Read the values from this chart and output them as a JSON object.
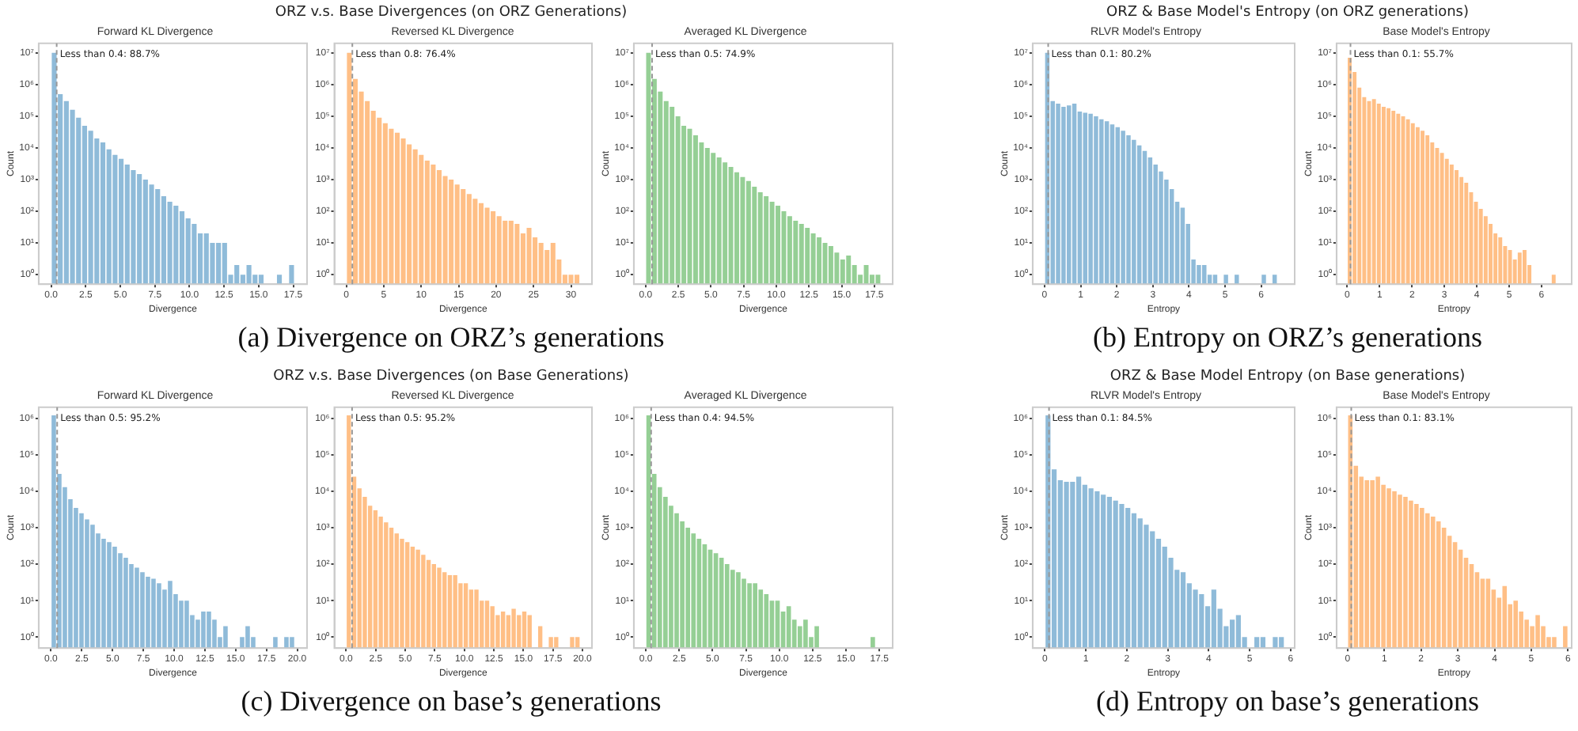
{
  "chart_data": [
    {
      "type": "histogram",
      "title": "Forward KL Divergence",
      "xlabel": "Divergence",
      "ylabel": "Count",
      "color": "#8fbbd9",
      "log": "y",
      "annotations": [
        "ORZ v.s. Base Divergences (on ORZ Generations)",
        "(a) Divergence on ORZ’s generations"
      ],
      "bins": [
        0,
        0.44,
        0.88,
        1.32,
        1.76,
        2.2,
        2.64,
        3.08,
        3.52,
        3.96,
        4.4,
        4.84,
        5.28,
        5.72,
        6.16,
        6.6,
        7.04,
        7.48,
        7.92,
        8.36,
        8.8,
        9.24,
        9.68,
        10.12,
        10.56,
        11,
        11.44,
        11.88,
        12.32,
        12.76,
        13.2,
        13.64,
        14.08,
        14.52,
        14.96,
        15.4,
        15.84,
        16.28,
        16.72,
        17.16,
        17.6
      ],
      "values": [
        10000000,
        500000,
        300000,
        160000,
        90000,
        50000,
        35000,
        20000,
        15000,
        9000,
        6000,
        4500,
        3000,
        2000,
        1500,
        1000,
        700,
        500,
        300,
        200,
        150,
        100,
        60,
        40,
        20,
        20,
        10,
        10,
        10,
        1,
        2,
        1,
        2,
        1,
        1,
        null,
        null,
        1,
        null,
        2
      ],
      "xlim": [
        -0.9,
        18.5
      ],
      "xticks": [
        {
          "value": 0,
          "label": "0.0"
        },
        2.5,
        {
          "value": 5,
          "label": "5.0"
        },
        7.5,
        {
          "value": 10,
          "label": "10.0"
        },
        12.5,
        {
          "value": 15,
          "label": "15.0"
        },
        17.5
      ],
      "ylim": [
        0.5,
        20000000
      ],
      "yticks": [
        {
          "value": 1,
          "label": "10⁰"
        },
        {
          "value": 10,
          "label": "10¹"
        },
        {
          "value": 100,
          "label": "10²"
        },
        {
          "value": 1000,
          "label": "10³"
        },
        {
          "value": 10000,
          "label": "10⁴"
        },
        {
          "value": 100000,
          "label": "10⁵"
        },
        {
          "value": 1000000,
          "label": "10⁶"
        },
        {
          "value": 10000000,
          "label": "10⁷"
        }
      ],
      "ref_lines": [
        {
          "axis": "x",
          "value": 0.4,
          "label": "Less than 0.4: 88.7%",
          "color": "#999999",
          "line_style": "dashed"
        }
      ]
    },
    {
      "type": "histogram",
      "title": "Reversed KL Divergence",
      "xlabel": "Divergence",
      "color": "#ffbf86",
      "log": "y",
      "bins": [
        0,
        0.8,
        1.6,
        2.4,
        3.2,
        4,
        4.8,
        5.6,
        6.4,
        7.2,
        8,
        8.8,
        9.6,
        10.4,
        11.2,
        12,
        12.8,
        13.6,
        14.4,
        15.2,
        16,
        16.8,
        17.6,
        18.4,
        19.2,
        20,
        20.8,
        21.6,
        22.4,
        23.2,
        24,
        24.8,
        25.6,
        26.4,
        27.2,
        28,
        28.8,
        29.6,
        30.4,
        31.2
      ],
      "values": [
        10000000,
        1500000,
        600000,
        300000,
        150000,
        90000,
        60000,
        40000,
        30000,
        20000,
        13000,
        9000,
        6000,
        4000,
        3000,
        2000,
        1300,
        1000,
        700,
        500,
        350,
        250,
        180,
        130,
        100,
        70,
        50,
        50,
        40,
        20,
        30,
        15,
        10,
        6,
        10,
        3,
        1,
        1,
        1
      ],
      "xlim": [
        -1.6,
        32.8
      ],
      "xticks": [
        0,
        5,
        10,
        15,
        20,
        25,
        30
      ],
      "ylim": [
        0.5,
        20000000
      ],
      "yticks": [
        {
          "value": 1,
          "label": "10⁰"
        },
        {
          "value": 10,
          "label": "10¹"
        },
        {
          "value": 100,
          "label": "10²"
        },
        {
          "value": 1000,
          "label": "10³"
        },
        {
          "value": 10000,
          "label": "10⁴"
        },
        {
          "value": 100000,
          "label": "10⁵"
        },
        {
          "value": 1000000,
          "label": "10⁶"
        },
        {
          "value": 10000000,
          "label": "10⁷"
        }
      ],
      "ref_lines": [
        {
          "axis": "x",
          "value": 0.8,
          "label": "Less than 0.8: 76.4%",
          "color": "#999999",
          "line_style": "dashed"
        }
      ]
    },
    {
      "type": "histogram",
      "title": "Averaged KL Divergence",
      "xlabel": "Divergence",
      "ylabel": "Count",
      "color": "#95cf95",
      "log": "y",
      "bins": [
        0,
        0.45,
        0.9,
        1.35,
        1.8,
        2.25,
        2.7,
        3.15,
        3.6,
        4.05,
        4.5,
        4.95,
        5.4,
        5.85,
        6.3,
        6.75,
        7.2,
        7.65,
        8.1,
        8.55,
        9,
        9.45,
        9.9,
        10.35,
        10.8,
        11.25,
        11.7,
        12.15,
        12.6,
        13.05,
        13.5,
        13.95,
        14.4,
        14.85,
        15.3,
        15.75,
        16.2,
        16.65,
        17.1,
        17.55,
        18
      ],
      "values": [
        10000000,
        1500000,
        600000,
        300000,
        200000,
        100000,
        50000,
        40000,
        25000,
        15000,
        10000,
        7000,
        5000,
        3500,
        2500,
        1700,
        1200,
        900,
        600,
        400,
        300,
        200,
        150,
        100,
        70,
        50,
        40,
        30,
        20,
        15,
        10,
        8,
        5,
        3,
        4,
        2,
        1,
        2,
        1,
        1
      ],
      "xlim": [
        -0.9,
        18.9
      ],
      "xticks": [
        {
          "value": 0,
          "label": "0.0"
        },
        2.5,
        {
          "value": 5,
          "label": "5.0"
        },
        7.5,
        {
          "value": 10,
          "label": "10.0"
        },
        12.5,
        {
          "value": 15,
          "label": "15.0"
        },
        17.5
      ],
      "ylim": [
        0.5,
        20000000
      ],
      "yticks": [
        {
          "value": 1,
          "label": "10⁰"
        },
        {
          "value": 10,
          "label": "10¹"
        },
        {
          "value": 100,
          "label": "10²"
        },
        {
          "value": 1000,
          "label": "10³"
        },
        {
          "value": 10000,
          "label": "10⁴"
        },
        {
          "value": 100000,
          "label": "10⁵"
        },
        {
          "value": 1000000,
          "label": "10⁶"
        },
        {
          "value": 10000000,
          "label": "10⁷"
        }
      ],
      "ref_lines": [
        {
          "axis": "x",
          "value": 0.5,
          "label": "Less than 0.5: 74.9%",
          "color": "#999999",
          "line_style": "dashed"
        }
      ]
    },
    {
      "type": "histogram",
      "title": "RLVR Model's Entropy",
      "xlabel": "Entropy",
      "ylabel": "Count",
      "color": "#8fbbd9",
      "log": "y",
      "annotations": [
        "ORZ & Base Model's Entropy (on ORZ generations)",
        "(b) Entropy on ORZ’s generations"
      ],
      "bins": [
        0,
        0.15,
        0.3,
        0.45,
        0.6,
        0.75,
        0.9,
        1.05,
        1.2,
        1.35,
        1.5,
        1.65,
        1.8,
        1.95,
        2.1,
        2.25,
        2.4,
        2.55,
        2.7,
        2.85,
        3,
        3.15,
        3.3,
        3.45,
        3.6,
        3.75,
        3.9,
        4.05,
        4.2,
        4.35,
        4.5,
        4.65,
        4.8,
        4.95,
        5.1,
        5.25,
        5.4,
        5.55,
        5.7,
        5.85,
        6,
        6.15,
        6.3,
        6.45,
        6.6
      ],
      "values": [
        10000000,
        300000,
        250000,
        200000,
        220000,
        250000,
        140000,
        130000,
        120000,
        100000,
        80000,
        70000,
        55000,
        45000,
        35000,
        25000,
        18000,
        12000,
        8000,
        5000,
        3000,
        1800,
        1000,
        500,
        200,
        130,
        40,
        3,
        2,
        2,
        1,
        1,
        null,
        1,
        null,
        1,
        null,
        null,
        null,
        null,
        1,
        null,
        1,
        null
      ],
      "xlim": [
        -0.33,
        6.93
      ],
      "xticks": [
        0,
        1,
        2,
        3,
        4,
        5,
        6
      ],
      "ylim": [
        0.5,
        20000000
      ],
      "yticks": [
        {
          "value": 1,
          "label": "10⁰"
        },
        {
          "value": 10,
          "label": "10¹"
        },
        {
          "value": 100,
          "label": "10²"
        },
        {
          "value": 1000,
          "label": "10³"
        },
        {
          "value": 10000,
          "label": "10⁴"
        },
        {
          "value": 100000,
          "label": "10⁵"
        },
        {
          "value": 1000000,
          "label": "10⁶"
        },
        {
          "value": 10000000,
          "label": "10⁷"
        }
      ],
      "ref_lines": [
        {
          "axis": "x",
          "value": 0.1,
          "label": "Less than 0.1: 80.2%",
          "color": "#999999",
          "line_style": "dashed"
        }
      ]
    },
    {
      "type": "histogram",
      "title": "Base Model's Entropy",
      "xlabel": "Entropy",
      "ylabel": "Count",
      "color": "#ffbf86",
      "log": "y",
      "bins": [
        0,
        0.15,
        0.3,
        0.45,
        0.6,
        0.75,
        0.9,
        1.05,
        1.2,
        1.35,
        1.5,
        1.65,
        1.8,
        1.95,
        2.1,
        2.25,
        2.4,
        2.55,
        2.7,
        2.85,
        3,
        3.15,
        3.3,
        3.45,
        3.6,
        3.75,
        3.9,
        4.05,
        4.2,
        4.35,
        4.5,
        4.65,
        4.8,
        4.95,
        5.1,
        5.25,
        5.4,
        5.55,
        5.7,
        5.85,
        6,
        6.15,
        6.3,
        6.45,
        6.6
      ],
      "values": [
        7000000,
        2500000,
        800000,
        400000,
        300000,
        350000,
        250000,
        200000,
        180000,
        150000,
        120000,
        100000,
        80000,
        60000,
        45000,
        35000,
        25000,
        15000,
        10000,
        7000,
        4500,
        3000,
        2000,
        1200,
        800,
        400,
        200,
        120,
        70,
        40,
        20,
        15,
        8,
        6,
        3,
        5,
        6,
        2,
        null,
        null,
        null,
        null,
        1,
        null
      ],
      "xlim": [
        -0.33,
        6.93
      ],
      "xticks": [
        0,
        1,
        2,
        3,
        4,
        5,
        6
      ],
      "ylim": [
        0.5,
        20000000
      ],
      "yticks": [
        {
          "value": 1,
          "label": "10⁰"
        },
        {
          "value": 10,
          "label": "10¹"
        },
        {
          "value": 100,
          "label": "10²"
        },
        {
          "value": 1000,
          "label": "10³"
        },
        {
          "value": 10000,
          "label": "10⁴"
        },
        {
          "value": 100000,
          "label": "10⁵"
        },
        {
          "value": 1000000,
          "label": "10⁶"
        },
        {
          "value": 10000000,
          "label": "10⁷"
        }
      ],
      "ref_lines": [
        {
          "axis": "x",
          "value": 0.1,
          "label": "Less than 0.1: 55.7%",
          "color": "#999999",
          "line_style": "dashed"
        }
      ]
    },
    {
      "type": "histogram",
      "title": "Forward KL Divergence",
      "xlabel": "Divergence",
      "ylabel": "Count",
      "color": "#8fbbd9",
      "log": "y",
      "annotations": [
        "ORZ v.s. Base Divergences (on Base Generations)",
        "(c) Divergence on base’s generations"
      ],
      "bins": [
        0,
        0.45,
        0.9,
        1.35,
        1.8,
        2.25,
        2.7,
        3.15,
        3.6,
        4.05,
        4.5,
        4.95,
        5.4,
        5.85,
        6.3,
        6.75,
        7.2,
        7.65,
        8.1,
        8.55,
        9,
        9.45,
        9.9,
        10.35,
        10.8,
        11.25,
        11.7,
        12.15,
        12.6,
        13.05,
        13.5,
        13.95,
        14.4,
        14.85,
        15.3,
        15.75,
        16.2,
        16.65,
        17.1,
        17.55,
        18,
        18.45,
        18.9,
        19.35,
        19.8
      ],
      "values": [
        1200000,
        30000,
        13000,
        6000,
        3500,
        2500,
        1700,
        1200,
        700,
        500,
        400,
        300,
        200,
        150,
        100,
        80,
        60,
        45,
        40,
        30,
        20,
        35,
        15,
        10,
        10,
        4,
        3,
        5,
        5,
        3,
        1,
        2,
        null,
        null,
        1,
        2,
        1,
        null,
        null,
        null,
        1,
        null,
        1,
        1
      ],
      "xlim": [
        -1,
        20.8
      ],
      "xticks": [
        {
          "value": 0,
          "label": "0.0"
        },
        2.5,
        {
          "value": 5,
          "label": "5.0"
        },
        7.5,
        {
          "value": 10,
          "label": "10.0"
        },
        12.5,
        {
          "value": 15,
          "label": "15.0"
        },
        17.5,
        {
          "value": 20,
          "label": "20.0"
        }
      ],
      "ylim": [
        0.5,
        2000000
      ],
      "yticks": [
        {
          "value": 1,
          "label": "10⁰"
        },
        {
          "value": 10,
          "label": "10¹"
        },
        {
          "value": 100,
          "label": "10²"
        },
        {
          "value": 1000,
          "label": "10³"
        },
        {
          "value": 10000,
          "label": "10⁴"
        },
        {
          "value": 100000,
          "label": "10⁵"
        },
        {
          "value": 1000000,
          "label": "10⁶"
        }
      ],
      "ref_lines": [
        {
          "axis": "x",
          "value": 0.5,
          "label": "Less than 0.5: 95.2%",
          "color": "#999999",
          "line_style": "dashed"
        }
      ]
    },
    {
      "type": "histogram",
      "title": "Reversed KL Divergence",
      "xlabel": "Divergence",
      "color": "#ffbf86",
      "log": "y",
      "bins": [
        0,
        0.45,
        0.9,
        1.35,
        1.8,
        2.25,
        2.7,
        3.15,
        3.6,
        4.05,
        4.5,
        4.95,
        5.4,
        5.85,
        6.3,
        6.75,
        7.2,
        7.65,
        8.1,
        8.55,
        9,
        9.45,
        9.9,
        10.35,
        10.8,
        11.25,
        11.7,
        12.15,
        12.6,
        13.05,
        13.5,
        13.95,
        14.4,
        14.85,
        15.3,
        15.75,
        16.2,
        16.65,
        17.1,
        17.55,
        18,
        18.45,
        18.9,
        19.35,
        19.8
      ],
      "values": [
        1200000,
        25000,
        12000,
        7000,
        4000,
        3000,
        2000,
        1400,
        1000,
        700,
        500,
        400,
        300,
        250,
        180,
        130,
        100,
        80,
        60,
        50,
        50,
        30,
        30,
        20,
        20,
        10,
        10,
        7,
        4,
        5,
        4,
        6,
        4,
        5,
        4,
        null,
        2,
        null,
        1,
        1,
        null,
        null,
        1,
        1
      ],
      "xlim": [
        -1,
        20.8
      ],
      "xticks": [
        {
          "value": 0,
          "label": "0.0"
        },
        2.5,
        {
          "value": 5,
          "label": "5.0"
        },
        7.5,
        {
          "value": 10,
          "label": "10.0"
        },
        12.5,
        {
          "value": 15,
          "label": "15.0"
        },
        17.5,
        {
          "value": 20,
          "label": "20.0"
        }
      ],
      "ylim": [
        0.5,
        2000000
      ],
      "yticks": [
        {
          "value": 1,
          "label": "10⁰"
        },
        {
          "value": 10,
          "label": "10¹"
        },
        {
          "value": 100,
          "label": "10²"
        },
        {
          "value": 1000,
          "label": "10³"
        },
        {
          "value": 10000,
          "label": "10⁴"
        },
        {
          "value": 100000,
          "label": "10⁵"
        },
        {
          "value": 1000000,
          "label": "10⁶"
        }
      ],
      "ref_lines": [
        {
          "axis": "x",
          "value": 0.5,
          "label": "Less than 0.5: 95.2%",
          "color": "#999999",
          "line_style": "dashed"
        }
      ]
    },
    {
      "type": "histogram",
      "title": "Averaged KL Divergence",
      "xlabel": "Divergence",
      "ylabel": "Count",
      "color": "#95cf95",
      "log": "y",
      "bins": [
        0,
        0.42,
        0.84,
        1.26,
        1.68,
        2.1,
        2.52,
        2.94,
        3.36,
        3.78,
        4.2,
        4.62,
        5.04,
        5.46,
        5.88,
        6.3,
        6.72,
        7.14,
        7.56,
        7.98,
        8.4,
        8.82,
        9.24,
        9.66,
        10.08,
        10.5,
        10.92,
        11.34,
        11.76,
        12.18,
        12.6,
        13.02,
        13.44,
        13.86,
        14.28,
        14.7,
        15.12,
        15.54,
        15.96,
        16.38,
        16.8,
        17.22,
        17.64
      ],
      "values": [
        1200000,
        30000,
        13000,
        7000,
        4000,
        2500,
        1500,
        1000,
        700,
        500,
        350,
        250,
        200,
        150,
        100,
        70,
        60,
        40,
        30,
        30,
        20,
        15,
        10,
        10,
        5,
        7,
        3,
        2,
        3,
        1,
        2,
        null,
        null,
        null,
        null,
        null,
        null,
        null,
        null,
        null,
        1,
        null
      ],
      "xlim": [
        -0.9,
        18.5
      ],
      "xticks": [
        {
          "value": 0,
          "label": "0.0"
        },
        2.5,
        {
          "value": 5,
          "label": "5.0"
        },
        7.5,
        {
          "value": 10,
          "label": "10.0"
        },
        12.5,
        {
          "value": 15,
          "label": "15.0"
        },
        17.5
      ],
      "ylim": [
        0.5,
        2000000
      ],
      "yticks": [
        {
          "value": 1,
          "label": "10⁰"
        },
        {
          "value": 10,
          "label": "10¹"
        },
        {
          "value": 100,
          "label": "10²"
        },
        {
          "value": 1000,
          "label": "10³"
        },
        {
          "value": 10000,
          "label": "10⁴"
        },
        {
          "value": 100000,
          "label": "10⁵"
        },
        {
          "value": 1000000,
          "label": "10⁶"
        }
      ],
      "ref_lines": [
        {
          "axis": "x",
          "value": 0.4,
          "label": "Less than 0.4: 94.5%",
          "color": "#999999",
          "line_style": "dashed"
        }
      ]
    },
    {
      "type": "histogram",
      "title": "RLVR Model's Entropy",
      "xlabel": "Entropy",
      "ylabel": "Count",
      "color": "#8fbbd9",
      "log": "y",
      "annotations": [
        "ORZ & Base Model Entropy (on Base generations)",
        "(d) Entropy on base’s generations"
      ],
      "bins": [
        0,
        0.15,
        0.3,
        0.45,
        0.6,
        0.75,
        0.9,
        1.05,
        1.2,
        1.35,
        1.5,
        1.65,
        1.8,
        1.95,
        2.1,
        2.25,
        2.4,
        2.55,
        2.7,
        2.85,
        3,
        3.15,
        3.3,
        3.45,
        3.6,
        3.75,
        3.9,
        4.05,
        4.2,
        4.35,
        4.5,
        4.65,
        4.8,
        4.95,
        5.1,
        5.25,
        5.4,
        5.55,
        5.7,
        5.85,
        6
      ],
      "values": [
        1200000,
        40000,
        20000,
        18000,
        18000,
        25000,
        15000,
        12000,
        10000,
        8000,
        7000,
        5500,
        4500,
        3500,
        2500,
        1800,
        1200,
        800,
        500,
        300,
        150,
        70,
        60,
        30,
        20,
        15,
        7,
        20,
        6,
        2,
        3,
        4,
        1,
        null,
        1,
        1,
        null,
        1,
        1,
        null
      ],
      "xlim": [
        -0.3,
        6.1
      ],
      "xticks": [
        0,
        1,
        2,
        3,
        4,
        5,
        6
      ],
      "ylim": [
        0.5,
        2000000
      ],
      "yticks": [
        {
          "value": 1,
          "label": "10⁰"
        },
        {
          "value": 10,
          "label": "10¹"
        },
        {
          "value": 100,
          "label": "10²"
        },
        {
          "value": 1000,
          "label": "10³"
        },
        {
          "value": 10000,
          "label": "10⁴"
        },
        {
          "value": 100000,
          "label": "10⁵"
        },
        {
          "value": 1000000,
          "label": "10⁶"
        }
      ],
      "ref_lines": [
        {
          "axis": "x",
          "value": 0.1,
          "label": "Less than 0.1: 84.5%",
          "color": "#999999",
          "line_style": "dashed"
        }
      ]
    },
    {
      "type": "histogram",
      "title": "Base Model's Entropy",
      "xlabel": "Entropy",
      "ylabel": "Count",
      "color": "#ffbf86",
      "log": "y",
      "bins": [
        0,
        0.15,
        0.3,
        0.45,
        0.6,
        0.75,
        0.9,
        1.05,
        1.2,
        1.35,
        1.5,
        1.65,
        1.8,
        1.95,
        2.1,
        2.25,
        2.4,
        2.55,
        2.7,
        2.85,
        3,
        3.15,
        3.3,
        3.45,
        3.6,
        3.75,
        3.9,
        4.05,
        4.2,
        4.35,
        4.5,
        4.65,
        4.8,
        4.95,
        5.1,
        5.25,
        5.4,
        5.55,
        5.7,
        5.85,
        6
      ],
      "values": [
        1200000,
        50000,
        25000,
        20000,
        20000,
        25000,
        15000,
        12000,
        10000,
        8000,
        7000,
        5500,
        4500,
        3500,
        2500,
        2000,
        1500,
        1000,
        600,
        400,
        250,
        150,
        100,
        60,
        40,
        40,
        20,
        12,
        25,
        8,
        10,
        5,
        3,
        2,
        4,
        2,
        1,
        1,
        null,
        2
      ],
      "xlim": [
        -0.3,
        6.1
      ],
      "xticks": [
        0,
        1,
        2,
        3,
        4,
        5,
        6
      ],
      "ylim": [
        0.5,
        2000000
      ],
      "yticks": [
        {
          "value": 1,
          "label": "10⁰"
        },
        {
          "value": 10,
          "label": "10¹"
        },
        {
          "value": 100,
          "label": "10²"
        },
        {
          "value": 1000,
          "label": "10³"
        },
        {
          "value": 10000,
          "label": "10⁴"
        },
        {
          "value": 100000,
          "label": "10⁵"
        },
        {
          "value": 1000000,
          "label": "10⁶"
        }
      ],
      "ref_lines": [
        {
          "axis": "x",
          "value": 0.1,
          "label": "Less than 0.1: 83.1%",
          "color": "#999999",
          "line_style": "dashed"
        }
      ]
    }
  ]
}
